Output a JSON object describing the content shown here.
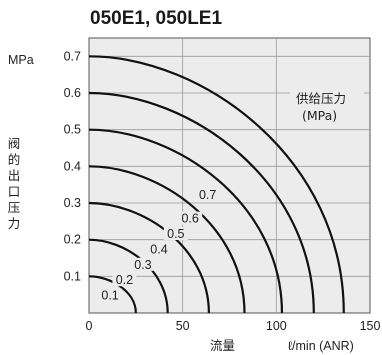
{
  "chart_data": {
    "type": "line",
    "title": "050E1, 050LE1",
    "xlabel": "流量",
    "xunit": "ℓ/min (ANR)",
    "ylabel": "阀的出口压力",
    "yunit": "MPa",
    "xlim": [
      0,
      150
    ],
    "ylim": [
      0,
      0.75
    ],
    "x_ticks": [
      "0",
      "50",
      "100",
      "150"
    ],
    "y_ticks": [
      "0.1",
      "0.2",
      "0.3",
      "0.4",
      "0.5",
      "0.6",
      "0.7"
    ],
    "legend_title": "供给压力",
    "legend_unit": "(MPa)",
    "grid": true,
    "background": "#ececec",
    "line_color": "#111111",
    "series": [
      {
        "name": "0.1",
        "start_y": 0.1,
        "end_x": 25
      },
      {
        "name": "0.2",
        "start_y": 0.2,
        "end_x": 42
      },
      {
        "name": "0.3",
        "start_y": 0.3,
        "end_x": 64
      },
      {
        "name": "0.4",
        "start_y": 0.4,
        "end_x": 83
      },
      {
        "name": "0.5",
        "start_y": 0.5,
        "end_x": 103
      },
      {
        "name": "0.6",
        "start_y": 0.6,
        "end_x": 120
      },
      {
        "name": "0.7",
        "start_y": 0.7,
        "end_x": 136
      }
    ]
  }
}
